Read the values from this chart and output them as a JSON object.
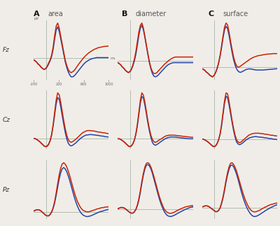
{
  "title_cols": [
    "area",
    "diameter",
    "surface"
  ],
  "col_labels": [
    "A",
    "B",
    "C"
  ],
  "row_labels": [
    "Fz",
    "Cz",
    "Pz"
  ],
  "ylabel_uv": "μV",
  "x_label_ms": "ms",
  "background_color": "#f0ede8",
  "line_red": "#cc2200",
  "line_blue": "#2244aa",
  "zero_line_color": "#99aa99",
  "figsize": [
    4.0,
    3.23
  ],
  "dpi": 100,
  "Fz_area_red": [
    -0.05,
    -0.08,
    -0.12,
    -0.18,
    -0.22,
    -0.28,
    -0.32,
    -0.35,
    -0.32,
    -0.25,
    -0.15,
    -0.05,
    0.1,
    0.35,
    0.7,
    1.0,
    1.1,
    0.95,
    0.7,
    0.45,
    0.2,
    -0.05,
    -0.22,
    -0.35,
    -0.42,
    -0.45,
    -0.42,
    -0.38,
    -0.32,
    -0.25,
    -0.18,
    -0.12,
    -0.06,
    0.0,
    0.05,
    0.1,
    0.14,
    0.18,
    0.21,
    0.24,
    0.27,
    0.29,
    0.31,
    0.33,
    0.34,
    0.35,
    0.36,
    0.37,
    0.37,
    0.38,
    0.38
  ],
  "Fz_area_blue": [
    -0.05,
    -0.08,
    -0.12,
    -0.18,
    -0.22,
    -0.28,
    -0.32,
    -0.35,
    -0.33,
    -0.27,
    -0.18,
    -0.08,
    0.06,
    0.28,
    0.6,
    0.88,
    0.98,
    0.85,
    0.62,
    0.38,
    0.14,
    -0.1,
    -0.28,
    -0.42,
    -0.52,
    -0.58,
    -0.58,
    -0.55,
    -0.5,
    -0.44,
    -0.38,
    -0.32,
    -0.26,
    -0.2,
    -0.15,
    -0.11,
    -0.08,
    -0.05,
    -0.03,
    -0.01,
    0.0,
    0.01,
    0.02,
    0.02,
    0.02,
    0.02,
    0.02,
    0.02,
    0.02,
    0.02,
    0.02
  ],
  "Fz_diameter_red": [
    -0.05,
    -0.08,
    -0.12,
    -0.18,
    -0.22,
    -0.28,
    -0.32,
    -0.35,
    -0.32,
    -0.25,
    -0.12,
    0.05,
    0.28,
    0.58,
    0.88,
    1.08,
    1.15,
    1.0,
    0.75,
    0.48,
    0.22,
    -0.02,
    -0.2,
    -0.32,
    -0.38,
    -0.38,
    -0.35,
    -0.3,
    -0.25,
    -0.2,
    -0.15,
    -0.1,
    -0.06,
    -0.02,
    0.02,
    0.05,
    0.08,
    0.1,
    0.12,
    0.12,
    0.12,
    0.12,
    0.12,
    0.12,
    0.12,
    0.12,
    0.12,
    0.12,
    0.12,
    0.12,
    0.12
  ],
  "Fz_diameter_blue": [
    -0.05,
    -0.08,
    -0.12,
    -0.18,
    -0.22,
    -0.28,
    -0.32,
    -0.35,
    -0.33,
    -0.26,
    -0.15,
    0.0,
    0.2,
    0.48,
    0.78,
    1.0,
    1.08,
    0.95,
    0.72,
    0.46,
    0.2,
    -0.05,
    -0.24,
    -0.38,
    -0.46,
    -0.48,
    -0.46,
    -0.42,
    -0.37,
    -0.32,
    -0.27,
    -0.22,
    -0.17,
    -0.13,
    -0.1,
    -0.08,
    -0.06,
    -0.05,
    -0.05,
    -0.05,
    -0.05,
    -0.05,
    -0.05,
    -0.05,
    -0.05,
    -0.05,
    -0.05,
    -0.05,
    -0.05,
    -0.05,
    -0.05
  ],
  "Fz_surface_red": [
    -0.05,
    -0.08,
    -0.12,
    -0.18,
    -0.22,
    -0.28,
    -0.32,
    -0.35,
    -0.3,
    -0.2,
    -0.05,
    0.15,
    0.42,
    0.78,
    1.15,
    1.48,
    1.62,
    1.55,
    1.28,
    0.95,
    0.65,
    0.38,
    0.18,
    0.05,
    0.0,
    0.02,
    0.06,
    0.1,
    0.14,
    0.18,
    0.22,
    0.26,
    0.3,
    0.33,
    0.36,
    0.38,
    0.4,
    0.42,
    0.43,
    0.44,
    0.45,
    0.46,
    0.47,
    0.48,
    0.48,
    0.49,
    0.49,
    0.5,
    0.5,
    0.5,
    0.5
  ],
  "Fz_surface_blue": [
    -0.05,
    -0.08,
    -0.12,
    -0.18,
    -0.22,
    -0.28,
    -0.32,
    -0.35,
    -0.3,
    -0.2,
    -0.05,
    0.15,
    0.4,
    0.72,
    1.08,
    1.38,
    1.5,
    1.42,
    1.16,
    0.85,
    0.55,
    0.28,
    0.08,
    -0.06,
    -0.14,
    -0.18,
    -0.18,
    -0.15,
    -0.12,
    -0.09,
    -0.07,
    -0.06,
    -0.06,
    -0.07,
    -0.08,
    -0.09,
    -0.1,
    -0.1,
    -0.1,
    -0.1,
    -0.1,
    -0.1,
    -0.09,
    -0.09,
    -0.08,
    -0.08,
    -0.07,
    -0.07,
    -0.06,
    -0.06,
    -0.05
  ],
  "Cz_area_red": [
    0.0,
    0.0,
    -0.02,
    -0.05,
    -0.08,
    -0.12,
    -0.16,
    -0.2,
    -0.22,
    -0.2,
    -0.15,
    -0.05,
    0.12,
    0.38,
    0.72,
    1.05,
    1.25,
    1.2,
    1.0,
    0.75,
    0.5,
    0.28,
    0.1,
    -0.02,
    -0.08,
    -0.1,
    -0.08,
    -0.05,
    -0.02,
    0.02,
    0.06,
    0.1,
    0.14,
    0.17,
    0.19,
    0.21,
    0.22,
    0.22,
    0.22,
    0.21,
    0.21,
    0.2,
    0.19,
    0.18,
    0.18,
    0.17,
    0.16,
    0.16,
    0.15,
    0.14,
    0.14
  ],
  "Cz_area_blue": [
    0.0,
    0.0,
    -0.02,
    -0.05,
    -0.08,
    -0.12,
    -0.16,
    -0.2,
    -0.22,
    -0.21,
    -0.16,
    -0.06,
    0.1,
    0.35,
    0.65,
    0.95,
    1.12,
    1.08,
    0.88,
    0.64,
    0.4,
    0.18,
    0.0,
    -0.12,
    -0.18,
    -0.2,
    -0.18,
    -0.15,
    -0.12,
    -0.08,
    -0.04,
    0.0,
    0.03,
    0.06,
    0.08,
    0.1,
    0.1,
    0.11,
    0.11,
    0.11,
    0.1,
    0.1,
    0.09,
    0.09,
    0.08,
    0.07,
    0.07,
    0.06,
    0.05,
    0.05,
    0.04
  ],
  "Cz_diameter_red": [
    0.0,
    0.0,
    -0.02,
    -0.05,
    -0.08,
    -0.12,
    -0.16,
    -0.2,
    -0.22,
    -0.2,
    -0.14,
    -0.04,
    0.14,
    0.4,
    0.74,
    1.08,
    1.28,
    1.22,
    1.02,
    0.76,
    0.5,
    0.28,
    0.1,
    -0.02,
    -0.08,
    -0.1,
    -0.08,
    -0.05,
    -0.02,
    0.0,
    0.03,
    0.06,
    0.08,
    0.09,
    0.1,
    0.1,
    0.1,
    0.1,
    0.1,
    0.09,
    0.09,
    0.08,
    0.08,
    0.07,
    0.07,
    0.06,
    0.06,
    0.05,
    0.05,
    0.04,
    0.04
  ],
  "Cz_diameter_blue": [
    0.0,
    0.0,
    -0.02,
    -0.05,
    -0.08,
    -0.12,
    -0.16,
    -0.2,
    -0.22,
    -0.2,
    -0.14,
    -0.04,
    0.12,
    0.36,
    0.68,
    1.0,
    1.18,
    1.14,
    0.94,
    0.7,
    0.44,
    0.22,
    0.04,
    -0.1,
    -0.16,
    -0.18,
    -0.16,
    -0.13,
    -0.1,
    -0.07,
    -0.04,
    -0.01,
    0.01,
    0.03,
    0.04,
    0.05,
    0.05,
    0.05,
    0.05,
    0.04,
    0.04,
    0.03,
    0.03,
    0.02,
    0.02,
    0.01,
    0.01,
    0.0,
    0.0,
    0.0,
    0.0
  ],
  "Cz_surface_red": [
    0.0,
    0.0,
    -0.02,
    -0.05,
    -0.08,
    -0.12,
    -0.16,
    -0.2,
    -0.22,
    -0.2,
    -0.13,
    -0.02,
    0.16,
    0.44,
    0.8,
    1.15,
    1.38,
    1.35,
    1.12,
    0.84,
    0.56,
    0.32,
    0.12,
    -0.02,
    -0.08,
    -0.1,
    -0.08,
    -0.04,
    0.0,
    0.04,
    0.08,
    0.12,
    0.14,
    0.16,
    0.17,
    0.18,
    0.18,
    0.18,
    0.18,
    0.17,
    0.17,
    0.16,
    0.15,
    0.15,
    0.14,
    0.13,
    0.12,
    0.12,
    0.11,
    0.1,
    0.1
  ],
  "Cz_surface_blue": [
    0.0,
    0.0,
    -0.02,
    -0.05,
    -0.08,
    -0.12,
    -0.16,
    -0.2,
    -0.22,
    -0.2,
    -0.13,
    -0.02,
    0.14,
    0.4,
    0.75,
    1.08,
    1.28,
    1.24,
    1.02,
    0.76,
    0.5,
    0.26,
    0.06,
    -0.08,
    -0.14,
    -0.16,
    -0.14,
    -0.11,
    -0.07,
    -0.03,
    0.0,
    0.03,
    0.05,
    0.06,
    0.07,
    0.08,
    0.08,
    0.07,
    0.07,
    0.06,
    0.06,
    0.05,
    0.04,
    0.04,
    0.03,
    0.02,
    0.02,
    0.01,
    0.0,
    0.0,
    -0.01
  ],
  "Pz_area_red": [
    0.02,
    0.04,
    0.06,
    0.06,
    0.05,
    0.02,
    -0.02,
    -0.06,
    -0.1,
    -0.12,
    -0.12,
    -0.08,
    0.0,
    0.12,
    0.3,
    0.55,
    0.82,
    1.08,
    1.28,
    1.4,
    1.44,
    1.4,
    1.32,
    1.2,
    1.06,
    0.9,
    0.74,
    0.58,
    0.44,
    0.32,
    0.22,
    0.14,
    0.08,
    0.04,
    0.02,
    0.0,
    0.0,
    0.0,
    0.02,
    0.03,
    0.05,
    0.06,
    0.08,
    0.09,
    0.1,
    0.12,
    0.12,
    0.13,
    0.14,
    0.14,
    0.15
  ],
  "Pz_area_blue": [
    0.02,
    0.04,
    0.06,
    0.06,
    0.05,
    0.02,
    -0.02,
    -0.06,
    -0.1,
    -0.12,
    -0.12,
    -0.08,
    -0.01,
    0.1,
    0.26,
    0.48,
    0.72,
    0.96,
    1.14,
    1.26,
    1.3,
    1.26,
    1.18,
    1.06,
    0.92,
    0.76,
    0.6,
    0.44,
    0.3,
    0.18,
    0.08,
    0.0,
    -0.06,
    -0.1,
    -0.12,
    -0.14,
    -0.14,
    -0.13,
    -0.12,
    -0.1,
    -0.08,
    -0.06,
    -0.04,
    -0.02,
    0.0,
    0.01,
    0.02,
    0.04,
    0.05,
    0.06,
    0.07
  ],
  "Pz_diameter_red": [
    0.02,
    0.04,
    0.06,
    0.06,
    0.05,
    0.02,
    -0.02,
    -0.06,
    -0.1,
    -0.12,
    -0.12,
    -0.08,
    0.0,
    0.14,
    0.34,
    0.6,
    0.9,
    1.16,
    1.36,
    1.48,
    1.5,
    1.46,
    1.36,
    1.22,
    1.06,
    0.88,
    0.7,
    0.52,
    0.36,
    0.22,
    0.1,
    0.0,
    -0.06,
    -0.1,
    -0.12,
    -0.13,
    -0.12,
    -0.1,
    -0.08,
    -0.05,
    -0.03,
    0.0,
    0.02,
    0.04,
    0.06,
    0.08,
    0.09,
    0.1,
    0.11,
    0.12,
    0.12
  ],
  "Pz_diameter_blue": [
    0.02,
    0.04,
    0.06,
    0.06,
    0.05,
    0.02,
    -0.02,
    -0.06,
    -0.1,
    -0.12,
    -0.12,
    -0.08,
    -0.01,
    0.12,
    0.3,
    0.55,
    0.84,
    1.1,
    1.3,
    1.42,
    1.44,
    1.4,
    1.3,
    1.16,
    0.98,
    0.8,
    0.62,
    0.44,
    0.28,
    0.14,
    0.02,
    -0.08,
    -0.15,
    -0.2,
    -0.22,
    -0.23,
    -0.22,
    -0.2,
    -0.18,
    -0.15,
    -0.12,
    -0.1,
    -0.07,
    -0.05,
    -0.02,
    0.0,
    0.02,
    0.04,
    0.06,
    0.07,
    0.08
  ],
  "Pz_surface_red": [
    0.02,
    0.04,
    0.06,
    0.06,
    0.05,
    0.02,
    -0.02,
    -0.06,
    -0.1,
    -0.14,
    -0.14,
    -0.1,
    -0.01,
    0.16,
    0.38,
    0.66,
    0.96,
    1.22,
    1.42,
    1.54,
    1.56,
    1.5,
    1.4,
    1.26,
    1.08,
    0.9,
    0.72,
    0.54,
    0.38,
    0.24,
    0.12,
    0.02,
    -0.06,
    -0.11,
    -0.14,
    -0.15,
    -0.14,
    -0.12,
    -0.1,
    -0.07,
    -0.04,
    -0.01,
    0.02,
    0.04,
    0.07,
    0.09,
    0.11,
    0.12,
    0.14,
    0.15,
    0.16
  ],
  "Pz_surface_blue": [
    0.02,
    0.04,
    0.06,
    0.06,
    0.05,
    0.02,
    -0.02,
    -0.06,
    -0.1,
    -0.14,
    -0.14,
    -0.1,
    -0.02,
    0.14,
    0.34,
    0.6,
    0.9,
    1.14,
    1.34,
    1.46,
    1.48,
    1.42,
    1.3,
    1.16,
    0.98,
    0.78,
    0.58,
    0.4,
    0.24,
    0.1,
    -0.02,
    -0.12,
    -0.2,
    -0.26,
    -0.3,
    -0.31,
    -0.3,
    -0.28,
    -0.25,
    -0.22,
    -0.18,
    -0.15,
    -0.11,
    -0.08,
    -0.05,
    -0.02,
    0.01,
    0.03,
    0.06,
    0.08,
    0.1
  ]
}
